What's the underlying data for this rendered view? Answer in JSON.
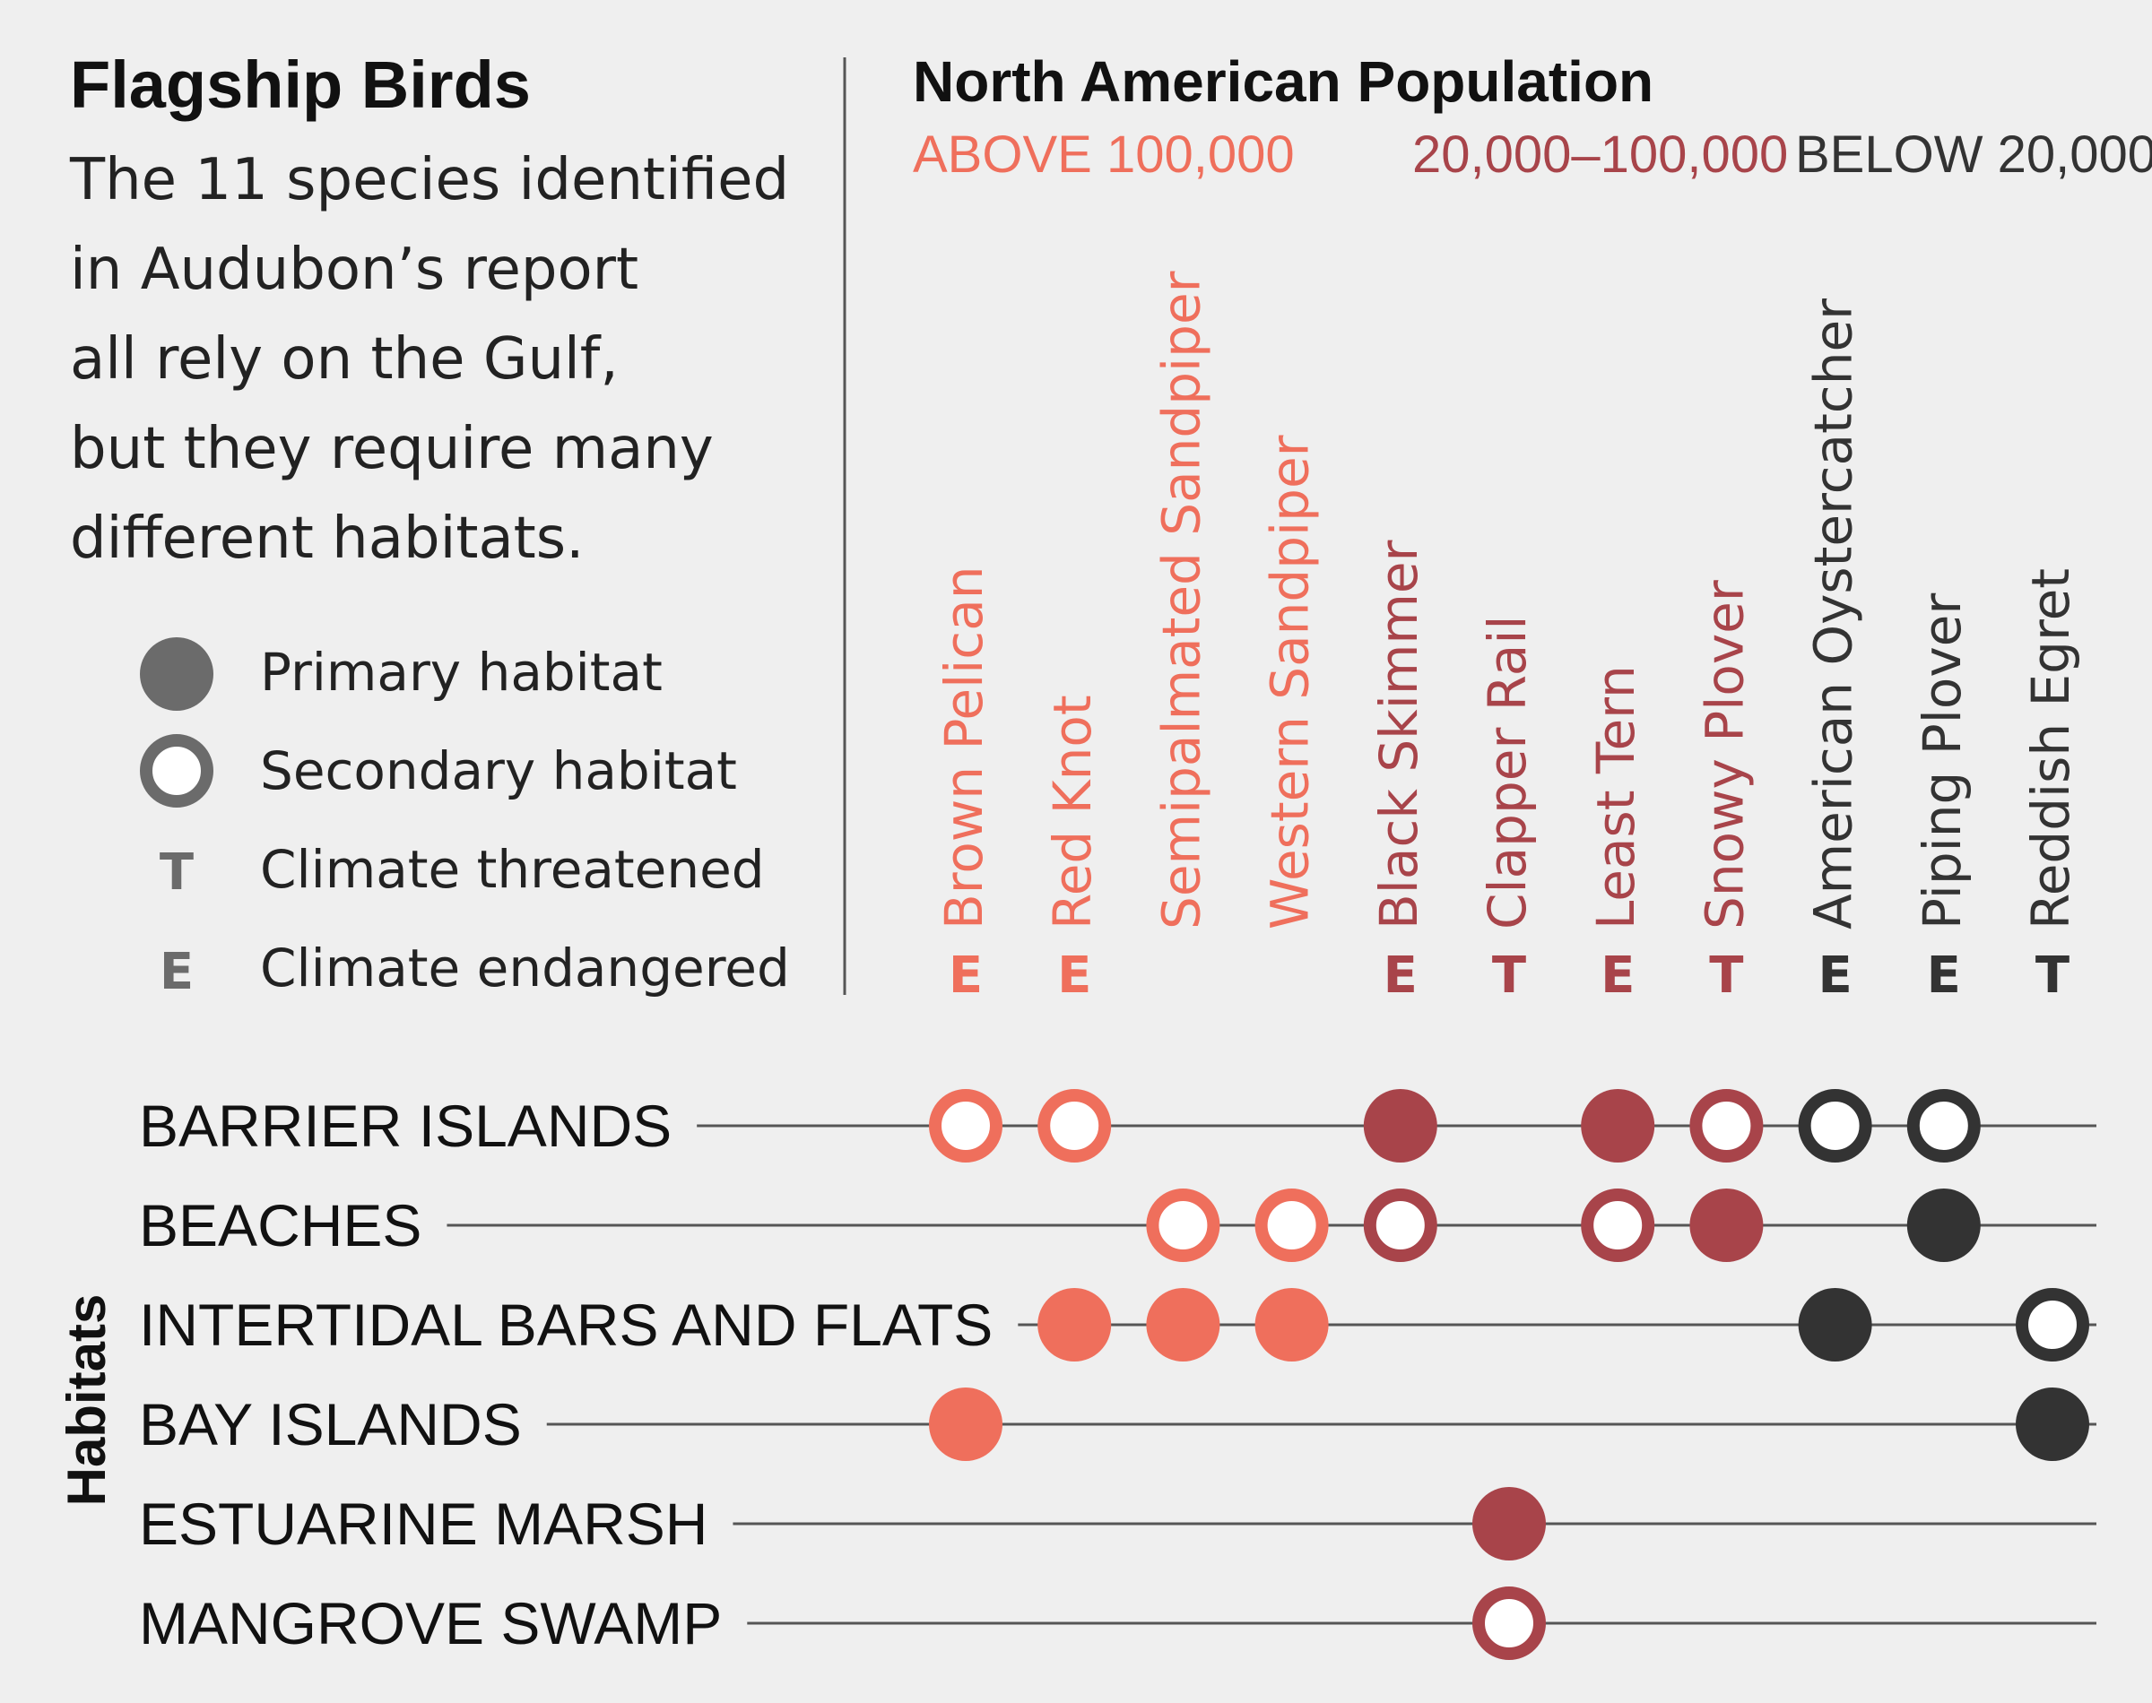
{
  "chart_data": {
    "type": "dot-matrix",
    "title": "Flagship Birds",
    "subtitle_lines": [
      "The 11 species identified",
      "in Audubon’s report",
      "all rely on the Gulf,",
      "but they require many",
      "different habitats."
    ],
    "legend": [
      {
        "id": "primary",
        "glyph": "",
        "label": "Primary habitat"
      },
      {
        "id": "secondary",
        "glyph": "",
        "label": "Secondary habitat"
      },
      {
        "id": "threatened",
        "glyph": "T",
        "label": "Climate threatened"
      },
      {
        "id": "endangered",
        "glyph": "E",
        "label": "Climate endangered"
      }
    ],
    "population_title": "North American Population",
    "population_categories": [
      {
        "id": "high",
        "label": "ABOVE 100,000",
        "color": "#ef6f5c"
      },
      {
        "id": "mid",
        "label": "20,000–100,000",
        "color": "#a8444a"
      },
      {
        "id": "low",
        "label": "BELOW 20,000",
        "color": "#333333"
      }
    ],
    "species": [
      {
        "name": "Brown Pelican",
        "population": "high",
        "status": "E"
      },
      {
        "name": "Red Knot",
        "population": "high",
        "status": "E"
      },
      {
        "name": "Semipalmated Sandpiper",
        "population": "high",
        "status": ""
      },
      {
        "name": "Western Sandpiper",
        "population": "high",
        "status": ""
      },
      {
        "name": "Black Skimmer",
        "population": "mid",
        "status": "E"
      },
      {
        "name": "Clapper Rail",
        "population": "mid",
        "status": "T"
      },
      {
        "name": "Least Tern",
        "population": "mid",
        "status": "E"
      },
      {
        "name": "Snowy Plover",
        "population": "mid",
        "status": "T"
      },
      {
        "name": "American Oystercatcher",
        "population": "low",
        "status": "E"
      },
      {
        "name": "Piping Plover",
        "population": "low",
        "status": "E"
      },
      {
        "name": "Reddish Egret",
        "population": "low",
        "status": "T"
      }
    ],
    "habitat_axis_title": "Habitats",
    "habitats": [
      "BARRIER ISLANDS",
      "BEACHES",
      "INTERTIDAL BARS AND FLATS",
      "BAY ISLANDS",
      "ESTUARINE MARSH",
      "MANGROVE SWAMP"
    ],
    "matrix": [
      [
        "S",
        "S",
        "",
        "",
        "P",
        "",
        "P",
        "S",
        "S",
        "S",
        ""
      ],
      [
        "",
        "",
        "S",
        "S",
        "S",
        "",
        "S",
        "P",
        "",
        "P",
        ""
      ],
      [
        "",
        "P",
        "P",
        "P",
        "",
        "",
        "",
        "",
        "P",
        "",
        "S"
      ],
      [
        "P",
        "",
        "",
        "",
        "",
        "",
        "",
        "",
        "",
        "",
        "P"
      ],
      [
        "",
        "",
        "",
        "",
        "",
        "P",
        "",
        "",
        "",
        "",
        ""
      ],
      [
        "",
        "",
        "",
        "",
        "",
        "S",
        "",
        "",
        "",
        "",
        ""
      ]
    ]
  }
}
